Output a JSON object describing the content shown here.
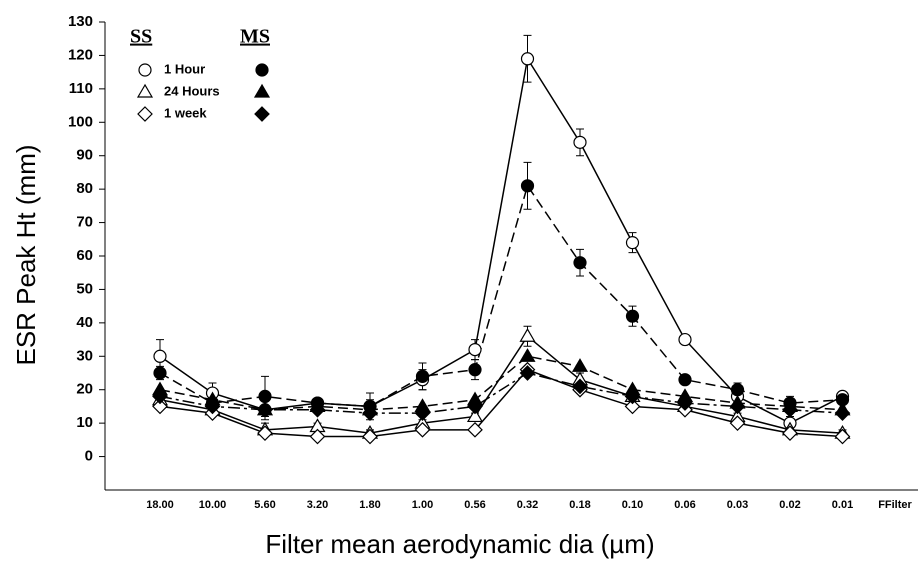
{
  "chart_data": {
    "type": "line",
    "xlabel": "Filter mean aerodynamic dia (µm)",
    "ylabel": "ESR Peak Ht (mm)",
    "categories": [
      "18.00",
      "10.00",
      "5.60",
      "3.20",
      "1.80",
      "1.00",
      "0.56",
      "0.32",
      "0.18",
      "0.10",
      "0.06",
      "0.03",
      "0.02",
      "0.01",
      "FFilter"
    ],
    "ylim": [
      -10,
      130
    ],
    "yticks": [
      0,
      10,
      20,
      30,
      40,
      50,
      60,
      70,
      80,
      90,
      100,
      110,
      120,
      130
    ],
    "legend_groups": [
      "SS",
      "MS"
    ],
    "series": [
      {
        "name": "1 Hour",
        "group": 0,
        "marker": "circle",
        "filled": false,
        "dash": "solid",
        "color": "#000000",
        "values": [
          30,
          19,
          14,
          16,
          15,
          23,
          32,
          119,
          94,
          64,
          35,
          18,
          10,
          18,
          null
        ],
        "errors": [
          5,
          3,
          3,
          1,
          2,
          3,
          3,
          7,
          4,
          3,
          1,
          2,
          2,
          1,
          null
        ]
      },
      {
        "name": "24 Hours",
        "group": 0,
        "marker": "triangle",
        "filled": false,
        "dash": "solid",
        "color": "#000000",
        "values": [
          17,
          14,
          8,
          9,
          7,
          10,
          12,
          36,
          23,
          18,
          15,
          12,
          8,
          7,
          null
        ],
        "errors": [
          2,
          2,
          2,
          1,
          1,
          1,
          1,
          3,
          2,
          1,
          1,
          1,
          1,
          1,
          null
        ]
      },
      {
        "name": "1 week",
        "group": 0,
        "marker": "diamond",
        "filled": false,
        "dash": "solid",
        "color": "#000000",
        "values": [
          15,
          13,
          7,
          6,
          6,
          8,
          8,
          26,
          20,
          15,
          14,
          10,
          7,
          6,
          null
        ]
      },
      {
        "name": "1 Hour",
        "group": 1,
        "marker": "circle",
        "filled": true,
        "dash": "dashed",
        "color": "#000000",
        "values": [
          25,
          16,
          18,
          16,
          15,
          24,
          26,
          81,
          58,
          42,
          23,
          20,
          16,
          17,
          null
        ],
        "errors": [
          2,
          2,
          6,
          1,
          4,
          4,
          3,
          7,
          4,
          3,
          1,
          2,
          2,
          1,
          null
        ]
      },
      {
        "name": "24 Hours",
        "group": 1,
        "marker": "triangle",
        "filled": true,
        "dash": "dashed",
        "color": "#000000",
        "values": [
          20,
          17,
          14,
          15,
          14,
          15,
          17,
          30,
          27,
          20,
          18,
          16,
          15,
          14,
          null
        ]
      },
      {
        "name": "1 week",
        "group": 1,
        "marker": "diamond",
        "filled": true,
        "dash": "dashdot",
        "color": "#000000",
        "values": [
          18,
          15,
          14,
          14,
          13,
          13,
          15,
          25,
          21,
          18,
          16,
          15,
          14,
          13,
          null
        ]
      }
    ]
  }
}
